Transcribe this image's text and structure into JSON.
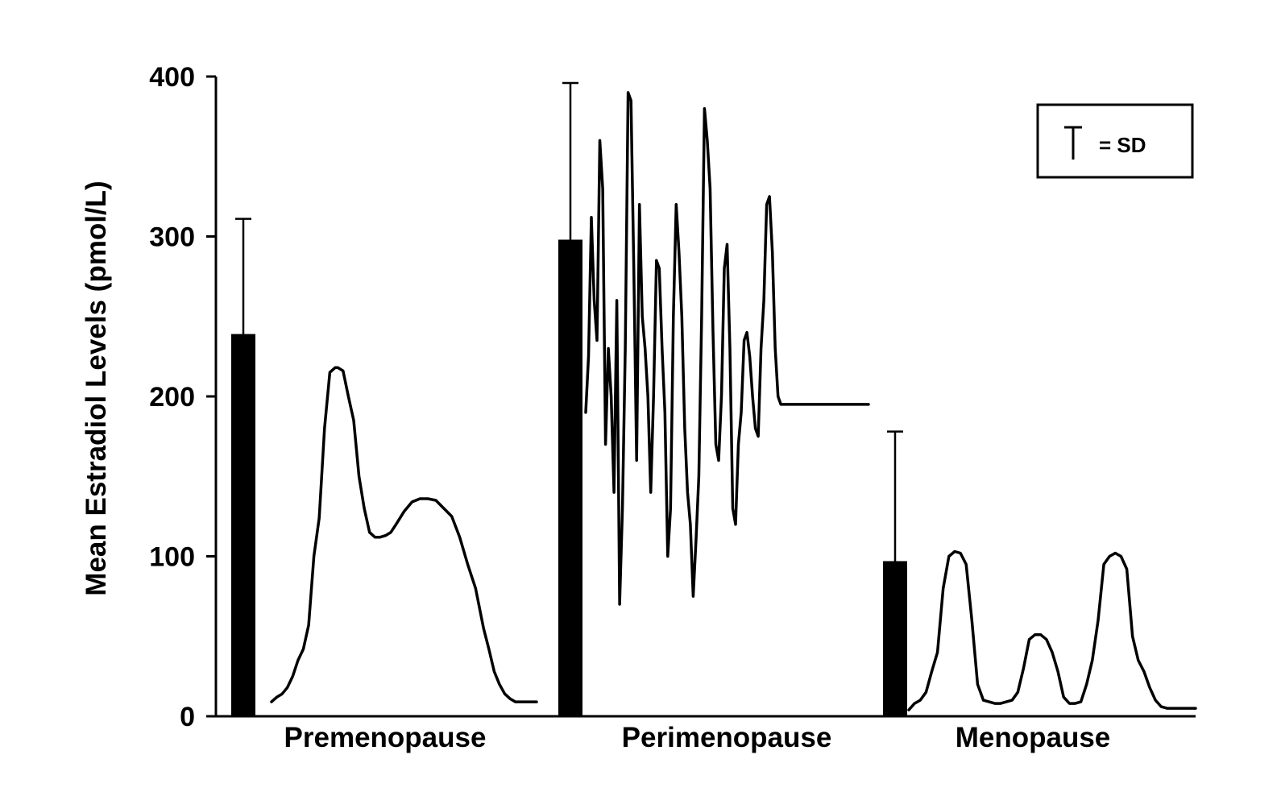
{
  "colors": {
    "ink": "#000000",
    "background": "#ffffff"
  },
  "legend": {
    "symbol": "error-bar-icon",
    "text": "= SD"
  },
  "chart_data": {
    "type": "bar",
    "ylabel": "Mean Estradiol Levels (pmol/L)",
    "xlabel": "",
    "title": "",
    "ylim": [
      0,
      400
    ],
    "yticks": [
      0,
      100,
      200,
      300,
      400
    ],
    "grid": false,
    "legend_position": "top-right",
    "categories": [
      "Premenopause",
      "Perimenopause",
      "Menopause"
    ],
    "series": [
      {
        "values": [
          239,
          298,
          97
        ],
        "error_sd": [
          72,
          98,
          81
        ]
      }
    ],
    "profiles": [
      {
        "category": "Premenopause",
        "type": "line",
        "t": [
          0,
          0.02,
          0.04,
          0.06,
          0.08,
          0.1,
          0.12,
          0.14,
          0.16,
          0.18,
          0.2,
          0.22,
          0.24,
          0.25,
          0.27,
          0.29,
          0.31,
          0.33,
          0.35,
          0.37,
          0.39,
          0.41,
          0.43,
          0.45,
          0.47,
          0.5,
          0.53,
          0.56,
          0.59,
          0.62,
          0.65,
          0.68,
          0.71,
          0.74,
          0.77,
          0.8,
          0.82,
          0.84,
          0.86,
          0.88,
          0.9,
          0.92,
          0.94,
          0.96,
          0.98,
          1.0
        ],
        "values": [
          9,
          12,
          14,
          18,
          25,
          35,
          42,
          57,
          100,
          124,
          180,
          215,
          218,
          218,
          216,
          200,
          185,
          150,
          130,
          115,
          112,
          112,
          113,
          115,
          120,
          128,
          134,
          136,
          136,
          135,
          130,
          125,
          112,
          95,
          80,
          55,
          42,
          28,
          20,
          14,
          11,
          9,
          9,
          9,
          9,
          9
        ]
      },
      {
        "category": "Perimenopause",
        "type": "line",
        "t": [
          0,
          0.01,
          0.02,
          0.03,
          0.04,
          0.05,
          0.06,
          0.07,
          0.08,
          0.09,
          0.1,
          0.11,
          0.12,
          0.13,
          0.14,
          0.15,
          0.16,
          0.17,
          0.18,
          0.19,
          0.2,
          0.21,
          0.22,
          0.23,
          0.24,
          0.25,
          0.26,
          0.27,
          0.28,
          0.29,
          0.3,
          0.31,
          0.32,
          0.33,
          0.34,
          0.35,
          0.36,
          0.37,
          0.38,
          0.39,
          0.4,
          0.41,
          0.42,
          0.43,
          0.44,
          0.45,
          0.46,
          0.47,
          0.48,
          0.49,
          0.5,
          0.51,
          0.52,
          0.53,
          0.54,
          0.55,
          0.56,
          0.57,
          0.58,
          0.59,
          0.6,
          0.61,
          0.62,
          0.63,
          0.64,
          0.65,
          0.66,
          0.67,
          0.68,
          0.69,
          0.7,
          0.71,
          0.72,
          0.73,
          0.74,
          0.75,
          0.76,
          0.77,
          0.78,
          0.79,
          0.8,
          0.81,
          0.82,
          0.83,
          0.84,
          0.85,
          0.86,
          0.87,
          0.88,
          0.89,
          0.9,
          0.91,
          0.92,
          0.93,
          0.94,
          0.95,
          0.96,
          0.97,
          0.98,
          0.99,
          1.0
        ],
        "values": [
          190,
          225,
          312,
          260,
          235,
          360,
          330,
          170,
          230,
          200,
          140,
          260,
          70,
          130,
          230,
          390,
          385,
          280,
          160,
          320,
          250,
          230,
          200,
          140,
          200,
          285,
          280,
          230,
          190,
          100,
          130,
          250,
          320,
          290,
          250,
          180,
          140,
          120,
          75,
          110,
          150,
          250,
          380,
          360,
          330,
          240,
          170,
          160,
          200,
          280,
          295,
          230,
          130,
          120,
          170,
          190,
          235,
          240,
          225,
          200,
          180,
          175,
          230,
          260,
          320,
          325,
          290,
          230,
          200,
          195,
          195,
          195,
          195,
          195,
          195,
          195,
          195,
          195,
          195,
          195,
          195,
          195,
          195,
          195,
          195,
          195,
          195,
          195,
          195,
          195,
          195,
          195,
          195,
          195,
          195,
          195,
          195,
          195,
          195,
          195,
          195
        ]
      },
      {
        "category": "Menopause",
        "type": "line",
        "t": [
          0,
          0.02,
          0.04,
          0.06,
          0.08,
          0.1,
          0.12,
          0.14,
          0.16,
          0.18,
          0.2,
          0.22,
          0.24,
          0.26,
          0.28,
          0.3,
          0.32,
          0.34,
          0.36,
          0.38,
          0.4,
          0.42,
          0.44,
          0.46,
          0.48,
          0.5,
          0.52,
          0.54,
          0.56,
          0.58,
          0.6,
          0.62,
          0.64,
          0.66,
          0.68,
          0.7,
          0.72,
          0.74,
          0.76,
          0.78,
          0.8,
          0.82,
          0.84,
          0.86,
          0.88,
          0.9,
          0.92,
          0.94,
          0.96,
          0.98,
          1.0
        ],
        "values": [
          4,
          8,
          10,
          15,
          28,
          40,
          80,
          100,
          103,
          102,
          95,
          60,
          20,
          10,
          9,
          8,
          8,
          9,
          10,
          15,
          30,
          48,
          51,
          51,
          48,
          40,
          28,
          12,
          8,
          8,
          9,
          20,
          35,
          60,
          95,
          100,
          102,
          100,
          92,
          50,
          35,
          28,
          18,
          10,
          6,
          5,
          5,
          5,
          5,
          5,
          5
        ]
      }
    ]
  }
}
